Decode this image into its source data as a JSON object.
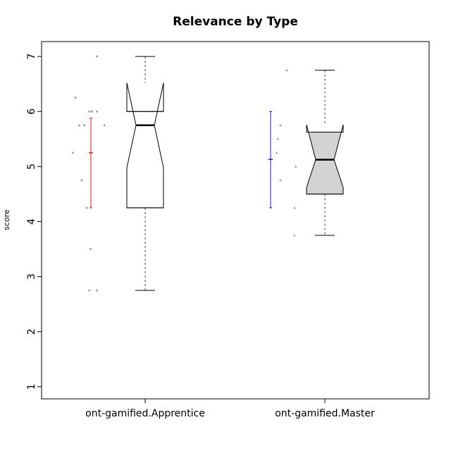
{
  "chart_data": {
    "type": "boxplot",
    "title": "Relevance by Type",
    "xlabel": "",
    "ylabel": "score",
    "ylim": [
      0.78,
      7.27
    ],
    "yticks": [
      "1",
      "2",
      "3",
      "4",
      "5",
      "6",
      "7"
    ],
    "grid": false,
    "legend": "none",
    "categories": [
      "ont-gamified.Apprentice",
      "ont-gamified.Master"
    ],
    "boxes": [
      {
        "name": "ont-gamified.Apprentice",
        "fill": "#ffffff",
        "whisker_low": 2.75,
        "q1": 4.25,
        "median": 5.75,
        "q3": 6.0,
        "whisker_high": 7.0,
        "notch_low": 4.98,
        "notch_high": 6.52,
        "mean": 5.25,
        "mean_ci": [
          4.25,
          5.88
        ],
        "mean_color": "#e31a1c",
        "points": [
          {
            "x": -0.38,
            "y": 7.0
          },
          {
            "x": -0.55,
            "y": 6.25
          },
          {
            "x": -0.44,
            "y": 6.0
          },
          {
            "x": -0.42,
            "y": 6.0
          },
          {
            "x": -0.38,
            "y": 6.0
          },
          {
            "x": -0.52,
            "y": 5.75
          },
          {
            "x": -0.48,
            "y": 5.75
          },
          {
            "x": -0.32,
            "y": 5.75
          },
          {
            "x": -0.57,
            "y": 5.25
          },
          {
            "x": -0.5,
            "y": 4.75
          },
          {
            "x": -0.46,
            "y": 4.25
          },
          {
            "x": -0.43,
            "y": 3.5
          },
          {
            "x": -0.44,
            "y": 2.75
          },
          {
            "x": -0.38,
            "y": 2.75
          }
        ]
      },
      {
        "name": "ont-gamified.Master",
        "fill": "#d3d3d3",
        "whisker_low": 3.75,
        "q1": 4.5,
        "median": 5.125,
        "q3": 5.625,
        "whisker_high": 6.75,
        "notch_low": 4.62,
        "notch_high": 5.76,
        "mean": 5.13,
        "mean_ci": [
          4.25,
          6.0
        ],
        "mean_color": "#1f1fbf",
        "points": [
          {
            "x": -0.3,
            "y": 6.75
          },
          {
            "x": -0.35,
            "y": 5.75
          },
          {
            "x": -0.37,
            "y": 5.5
          },
          {
            "x": -0.38,
            "y": 5.25
          },
          {
            "x": -0.23,
            "y": 5.0
          },
          {
            "x": -0.35,
            "y": 4.75
          },
          {
            "x": -0.24,
            "y": 4.25
          },
          {
            "x": -0.24,
            "y": 3.75
          }
        ]
      }
    ]
  }
}
